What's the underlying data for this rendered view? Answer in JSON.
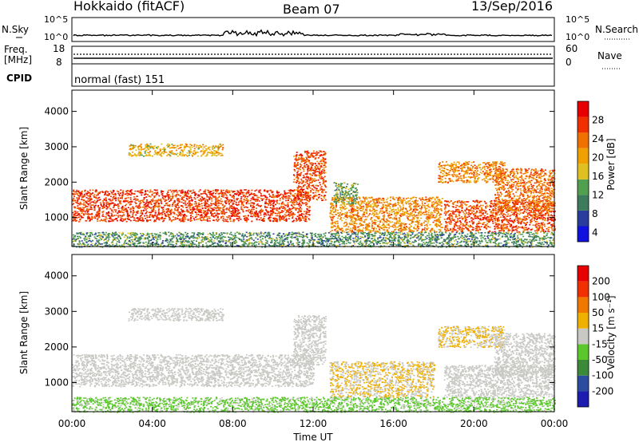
{
  "header": {
    "station": "Hokkaido (fitACF)",
    "beam": "Beam 07",
    "date": "13/Sep/2016"
  },
  "strip_panels": {
    "nsky": {
      "label": "N.Sky",
      "ticks": [
        "10^5",
        "10^0"
      ]
    },
    "nsearch": {
      "label": "N.Search",
      "ticks": [
        "10^5",
        "10^0"
      ]
    },
    "freq": {
      "label_line1": "Freq.",
      "label_line2": "[MHz]",
      "ticks": [
        "18",
        "8"
      ]
    },
    "nave": {
      "label": "Nave",
      "ticks": [
        "60",
        "0"
      ]
    },
    "cpid": {
      "label": "CPID",
      "mode": "normal (fast) 151"
    }
  },
  "power_panel": {
    "ylabel": "Slant Range [km]",
    "yticks": [
      "1000",
      "2000",
      "3000",
      "4000"
    ],
    "colorbar_label": "Power [dB]",
    "colorbar_ticks": [
      "4",
      "8",
      "12",
      "16",
      "20",
      "24",
      "28"
    ],
    "colors": [
      "#1010e0",
      "#2a3c9c",
      "#3c7c5c",
      "#50a050",
      "#e0c020",
      "#f0a000",
      "#f07000",
      "#f03000",
      "#e80000"
    ]
  },
  "velocity_panel": {
    "ylabel": "Slant Range [km]",
    "yticks": [
      "1000",
      "2000",
      "3000",
      "4000"
    ],
    "colorbar_label": "Velocity [m s⁻¹]",
    "colorbar_ticks": [
      "200",
      "100",
      "50",
      "15",
      "-15",
      "-50",
      "-100",
      "-200"
    ],
    "colors": [
      "#1c1cb0",
      "#2c4ca0",
      "#3a8a3a",
      "#5ac82a",
      "#c8c8c4",
      "#f0b000",
      "#f07800",
      "#f03000",
      "#e80000"
    ]
  },
  "xaxis": {
    "label": "Time UT",
    "ticks": [
      "00:00",
      "04:00",
      "08:00",
      "12:00",
      "16:00",
      "20:00",
      "00:00"
    ]
  },
  "chart_data": [
    {
      "type": "heatmap",
      "title": "Power",
      "x_unit": "hours UT",
      "xlim": [
        0,
        24
      ],
      "ylim": [
        180,
        4600
      ],
      "colorbar_range": [
        2,
        32
      ],
      "colorbar_label": "Power [dB]",
      "regions": [
        {
          "t0": 0.0,
          "t1": 11.8,
          "r0": 900,
          "r1": 1800,
          "value": 27
        },
        {
          "t0": 11.0,
          "t1": 12.6,
          "r0": 1500,
          "r1": 2900,
          "value": 26
        },
        {
          "t0": 2.8,
          "t1": 7.5,
          "r0": 2750,
          "r1": 3100,
          "value": 19
        },
        {
          "t0": 12.8,
          "t1": 18.4,
          "r0": 600,
          "r1": 1600,
          "value": 22
        },
        {
          "t0": 13.0,
          "t1": 14.2,
          "r0": 1400,
          "r1": 2000,
          "value": 13
        },
        {
          "t0": 18.5,
          "t1": 24.0,
          "r0": 600,
          "r1": 1500,
          "value": 26
        },
        {
          "t0": 18.2,
          "t1": 21.5,
          "r0": 2000,
          "r1": 2600,
          "value": 22
        },
        {
          "t0": 21.0,
          "t1": 24.0,
          "r0": 1200,
          "r1": 2400,
          "value": 24
        },
        {
          "t0": 0.0,
          "t1": 24.0,
          "r0": 180,
          "r1": 600,
          "value": 12
        }
      ]
    },
    {
      "type": "heatmap",
      "title": "Velocity",
      "x_unit": "hours UT",
      "xlim": [
        0,
        24
      ],
      "ylim": [
        180,
        4600
      ],
      "colorbar_range": [
        -250,
        250
      ],
      "colorbar_label": "Velocity [m s⁻¹]",
      "regions": [
        {
          "t0": 0.0,
          "t1": 12.0,
          "r0": 900,
          "r1": 1800,
          "value": 0
        },
        {
          "t0": 11.0,
          "t1": 12.6,
          "r0": 1500,
          "r1": 2900,
          "value": 0
        },
        {
          "t0": 2.8,
          "t1": 7.5,
          "r0": 2750,
          "r1": 3100,
          "value": 0
        },
        {
          "t0": 12.8,
          "t1": 18.0,
          "r0": 600,
          "r1": 1600,
          "value": 30
        },
        {
          "t0": 18.5,
          "t1": 24.0,
          "r0": 600,
          "r1": 1500,
          "value": 0
        },
        {
          "t0": 18.2,
          "t1": 21.5,
          "r0": 2000,
          "r1": 2600,
          "value": 30
        },
        {
          "t0": 21.0,
          "t1": 24.0,
          "r0": 1200,
          "r1": 2400,
          "value": 0
        },
        {
          "t0": 0.0,
          "t1": 24.0,
          "r0": 180,
          "r1": 600,
          "value": -40
        }
      ]
    }
  ]
}
